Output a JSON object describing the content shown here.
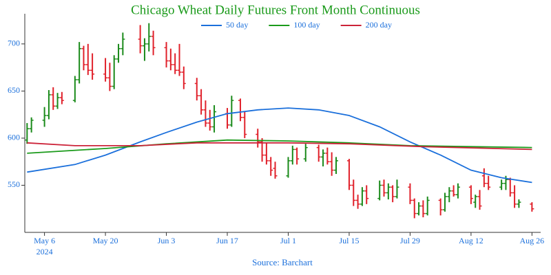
{
  "chart_data": {
    "type": "ohlc",
    "title": "Chicago Wheat Daily Futures Front Month Continuous",
    "source": "Source: Barchart",
    "x_year_label": "2024",
    "up_color": "#1a8a1a",
    "down_color": "#e0202a",
    "x": [
      "2024-05-02",
      "2024-05-03",
      "2024-05-06",
      "2024-05-07",
      "2024-05-08",
      "2024-05-09",
      "2024-05-10",
      "2024-05-13",
      "2024-05-14",
      "2024-05-15",
      "2024-05-16",
      "2024-05-17",
      "2024-05-20",
      "2024-05-21",
      "2024-05-22",
      "2024-05-23",
      "2024-05-24",
      "2024-05-28",
      "2024-05-29",
      "2024-05-30",
      "2024-05-31",
      "2024-06-03",
      "2024-06-04",
      "2024-06-05",
      "2024-06-06",
      "2024-06-07",
      "2024-06-10",
      "2024-06-11",
      "2024-06-12",
      "2024-06-13",
      "2024-06-14",
      "2024-06-17",
      "2024-06-18",
      "2024-06-20",
      "2024-06-21",
      "2024-06-24",
      "2024-06-25",
      "2024-06-26",
      "2024-06-27",
      "2024-06-28",
      "2024-07-01",
      "2024-07-02",
      "2024-07-03",
      "2024-07-05",
      "2024-07-08",
      "2024-07-09",
      "2024-07-10",
      "2024-07-11",
      "2024-07-12",
      "2024-07-15",
      "2024-07-16",
      "2024-07-17",
      "2024-07-18",
      "2024-07-19",
      "2024-07-22",
      "2024-07-23",
      "2024-07-24",
      "2024-07-25",
      "2024-07-26",
      "2024-07-29",
      "2024-07-30",
      "2024-07-31",
      "2024-08-01",
      "2024-08-02",
      "2024-08-05",
      "2024-08-06",
      "2024-08-07",
      "2024-08-08",
      "2024-08-09",
      "2024-08-12",
      "2024-08-13",
      "2024-08-14",
      "2024-08-15",
      "2024-08-16",
      "2024-08-19",
      "2024-08-20",
      "2024-08-21",
      "2024-08-22",
      "2024-08-23",
      "2024-08-26"
    ],
    "open": [
      598,
      610,
      619,
      624,
      646,
      634,
      643,
      640,
      662,
      695,
      678,
      672,
      668,
      664,
      655,
      684,
      695,
      705,
      698,
      700,
      708,
      696,
      682,
      678,
      672,
      670,
      658,
      645,
      630,
      616,
      612,
      626,
      614,
      640,
      622,
      604,
      596,
      582,
      576,
      568,
      560,
      576,
      588,
      578,
      590,
      580,
      584,
      575,
      566,
      576,
      550,
      534,
      530,
      544,
      536,
      550,
      542,
      548,
      538,
      548,
      534,
      520,
      528,
      520,
      534,
      524,
      538,
      544,
      540,
      548,
      532,
      538,
      560,
      552,
      548,
      552,
      556,
      542,
      530,
      530
    ],
    "high": [
      616,
      622,
      633,
      651,
      654,
      648,
      649,
      666,
      702,
      698,
      700,
      690,
      685,
      680,
      688,
      700,
      712,
      720,
      706,
      722,
      714,
      702,
      695,
      690,
      700,
      676,
      664,
      652,
      640,
      630,
      635,
      632,
      645,
      642,
      628,
      610,
      600,
      595,
      580,
      575,
      580,
      592,
      590,
      594,
      593,
      588,
      590,
      585,
      580,
      578,
      556,
      540,
      548,
      550,
      555,
      556,
      552,
      550,
      556,
      552,
      536,
      532,
      534,
      538,
      536,
      542,
      548,
      550,
      552,
      550,
      540,
      545,
      568,
      560,
      556,
      560,
      558,
      550,
      535,
      532
    ],
    "low": [
      594,
      606,
      612,
      620,
      630,
      631,
      636,
      638,
      658,
      672,
      667,
      662,
      660,
      650,
      652,
      680,
      688,
      690,
      682,
      692,
      688,
      675,
      672,
      668,
      666,
      652,
      640,
      625,
      612,
      608,
      606,
      610,
      612,
      618,
      600,
      590,
      575,
      572,
      560,
      557,
      558,
      572,
      572,
      575,
      575,
      570,
      572,
      560,
      562,
      545,
      528,
      525,
      528,
      530,
      534,
      538,
      535,
      532,
      536,
      530,
      515,
      518,
      516,
      518,
      518,
      522,
      532,
      538,
      536,
      530,
      526,
      524,
      548,
      545,
      545,
      545,
      538,
      526,
      526,
      522
    ],
    "close": [
      610,
      619,
      624,
      646,
      634,
      643,
      640,
      662,
      695,
      678,
      672,
      668,
      664,
      655,
      684,
      695,
      705,
      698,
      700,
      708,
      696,
      682,
      678,
      672,
      670,
      658,
      645,
      630,
      616,
      612,
      628,
      614,
      640,
      622,
      604,
      596,
      582,
      576,
      566,
      560,
      576,
      588,
      578,
      590,
      580,
      584,
      575,
      566,
      576,
      550,
      534,
      530,
      544,
      536,
      550,
      542,
      548,
      538,
      548,
      534,
      520,
      528,
      520,
      534,
      524,
      538,
      544,
      540,
      548,
      536,
      538,
      528,
      552,
      548,
      552,
      556,
      542,
      530,
      532,
      525
    ],
    "series": [
      {
        "name": "50 day",
        "color": "#1a6fdb",
        "x": [
          "2024-05-02",
          "2024-05-13",
          "2024-05-20",
          "2024-05-28",
          "2024-06-03",
          "2024-06-10",
          "2024-06-17",
          "2024-06-24",
          "2024-07-01",
          "2024-07-08",
          "2024-07-15",
          "2024-07-22",
          "2024-07-29",
          "2024-08-05",
          "2024-08-12",
          "2024-08-19",
          "2024-08-26"
        ],
        "values": [
          564,
          572,
          582,
          596,
          606,
          617,
          626,
          630,
          632,
          630,
          624,
          612,
          596,
          582,
          566,
          558,
          553
        ]
      },
      {
        "name": "100 day",
        "color": "#1a9a1a",
        "x": [
          "2024-05-02",
          "2024-05-20",
          "2024-06-03",
          "2024-06-17",
          "2024-07-01",
          "2024-07-15",
          "2024-07-29",
          "2024-08-12",
          "2024-08-26"
        ],
        "values": [
          584,
          589,
          594,
          598,
          597,
          595,
          592,
          591,
          590
        ]
      },
      {
        "name": "200 day",
        "color": "#cc2238",
        "x": [
          "2024-05-02",
          "2024-05-13",
          "2024-05-28",
          "2024-06-10",
          "2024-07-01",
          "2024-07-15",
          "2024-08-01",
          "2024-08-26"
        ],
        "values": [
          595,
          592,
          592,
          595,
          595,
          594,
          591,
          588
        ]
      }
    ],
    "xlim": [
      "2024-05-01",
      "2024-08-28"
    ],
    "xticks": [
      {
        "value": "2024-05-06",
        "label": "May 6"
      },
      {
        "value": "2024-05-20",
        "label": "May 20"
      },
      {
        "value": "2024-06-03",
        "label": "Jun 3"
      },
      {
        "value": "2024-06-17",
        "label": "Jun 17"
      },
      {
        "value": "2024-07-01",
        "label": "Jul 1"
      },
      {
        "value": "2024-07-15",
        "label": "Jul 15"
      },
      {
        "value": "2024-07-29",
        "label": "Jul 29"
      },
      {
        "value": "2024-08-12",
        "label": "Aug 12"
      },
      {
        "value": "2024-08-26",
        "label": "Aug 26"
      }
    ],
    "ylim": [
      500,
      732
    ],
    "yticks": [
      550,
      600,
      650,
      700
    ],
    "title_color": "#1a9a1a",
    "label_color": "#1a6fdb",
    "legend": "top"
  }
}
